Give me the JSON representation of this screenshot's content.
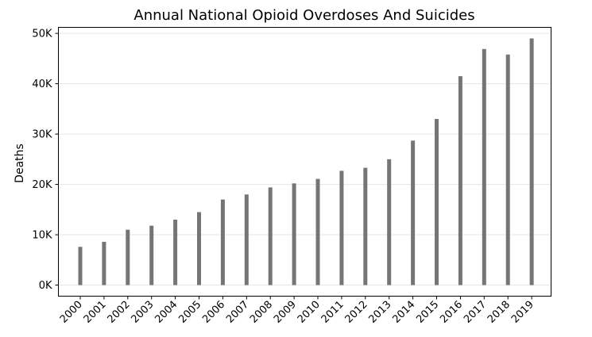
{
  "chart_data": {
    "type": "bar",
    "title": "Annual National Opioid Overdoses And Suicides",
    "xlabel": "",
    "ylabel": "Deaths",
    "categories": [
      "2000",
      "2001",
      "2002",
      "2003",
      "2004",
      "2005",
      "2006",
      "2007",
      "2008",
      "2009",
      "2010",
      "2011",
      "2012",
      "2013",
      "2014",
      "2015",
      "2016",
      "2017",
      "2018",
      "2019"
    ],
    "values": [
      7600,
      8600,
      11000,
      11800,
      13000,
      14500,
      17000,
      18000,
      19400,
      20200,
      21100,
      22700,
      23300,
      25000,
      28700,
      33000,
      41500,
      46900,
      45800,
      49000
    ],
    "ylim": [
      -2200,
      51200
    ],
    "yticks": [
      0,
      10000,
      20000,
      30000,
      40000,
      50000
    ],
    "ytick_labels": [
      "0K",
      "10K",
      "20K",
      "30K",
      "40K",
      "50K"
    ],
    "grid": true,
    "bar_color": "#757575"
  }
}
